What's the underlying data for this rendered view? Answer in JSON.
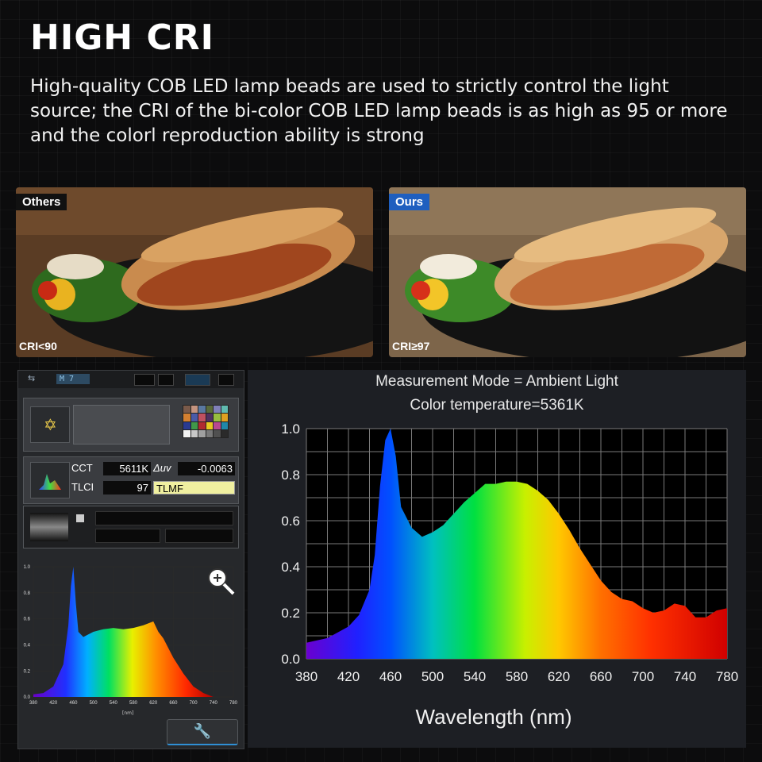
{
  "heading": "HIGH CRI",
  "description": "High-quality COB LED lamp beads are used to strictly control the light source; the CRI of the bi-color COB LED lamp beads is as high as 95 or more and the colorl reproduction ability is strong",
  "comparison": {
    "left": {
      "tag": "Others",
      "tag_color": "#111111",
      "cri": "CRI<90"
    },
    "right": {
      "tag": "Ours",
      "tag_color": "#1f5fbf",
      "cri": "CRI≥97"
    }
  },
  "meter": {
    "mode_text": "M 7",
    "cct_label": "CCT",
    "cct_value": "5611K",
    "duv_label": "Δuv",
    "duv_value": "-0.0063",
    "tlci_label": "TLCI",
    "tlci_value": "97",
    "tlmf_label": "TLMF",
    "mini_y_ticks": [
      "1.0",
      "0.8",
      "0.6",
      "0.4",
      "0.2",
      "0.0"
    ],
    "mini_x_ticks": [
      "380",
      "420",
      "460",
      "500",
      "540",
      "580",
      "620",
      "660",
      "700",
      "740",
      "780"
    ],
    "mini_x_unit": "[nm]",
    "icons": [
      "usb-icon",
      "sun-icon",
      "spectrum-icon",
      "zoom-icon",
      "wrench-icon"
    ]
  },
  "main_chart": {
    "mode_line": "Measurement Mode = Ambient Light",
    "temp_line": "Color temperature=5361K",
    "xlabel": "Wavelength (nm)"
  },
  "chart_data": [
    {
      "type": "area",
      "title": "",
      "xlabel": "Wavelength (nm)",
      "ylabel": "",
      "xlim": [
        380,
        780
      ],
      "ylim": [
        0,
        1.0
      ],
      "x_ticks": [
        380,
        420,
        460,
        500,
        540,
        580,
        620,
        660,
        700,
        740,
        780
      ],
      "y_ticks": [
        "0.0",
        "0.2",
        "0.4",
        "0.6",
        "0.8",
        "1.0"
      ],
      "grid": true,
      "x": [
        380,
        400,
        420,
        430,
        440,
        445,
        450,
        455,
        460,
        465,
        470,
        480,
        490,
        500,
        510,
        520,
        530,
        540,
        550,
        560,
        570,
        580,
        590,
        600,
        610,
        620,
        630,
        640,
        650,
        660,
        670,
        680,
        690,
        700,
        710,
        720,
        730,
        740,
        750,
        760,
        770,
        780
      ],
      "values": [
        0.07,
        0.09,
        0.14,
        0.19,
        0.3,
        0.45,
        0.75,
        0.95,
        1.0,
        0.88,
        0.66,
        0.57,
        0.53,
        0.55,
        0.58,
        0.63,
        0.68,
        0.72,
        0.76,
        0.76,
        0.77,
        0.77,
        0.76,
        0.73,
        0.69,
        0.63,
        0.56,
        0.48,
        0.41,
        0.34,
        0.29,
        0.26,
        0.25,
        0.22,
        0.2,
        0.21,
        0.24,
        0.23,
        0.18,
        0.18,
        0.21,
        0.22
      ]
    },
    {
      "type": "area",
      "title": "",
      "xlabel": "[nm]",
      "xlim": [
        380,
        780
      ],
      "ylim": [
        0,
        1.0
      ],
      "x": [
        380,
        400,
        420,
        440,
        450,
        455,
        460,
        465,
        470,
        480,
        490,
        500,
        520,
        540,
        560,
        580,
        600,
        620,
        630,
        640,
        660,
        680,
        700,
        720,
        740
      ],
      "values": [
        0.02,
        0.03,
        0.08,
        0.25,
        0.55,
        0.85,
        1.0,
        0.72,
        0.5,
        0.46,
        0.48,
        0.5,
        0.52,
        0.53,
        0.52,
        0.53,
        0.55,
        0.58,
        0.5,
        0.45,
        0.3,
        0.18,
        0.08,
        0.03,
        0.0
      ]
    }
  ]
}
